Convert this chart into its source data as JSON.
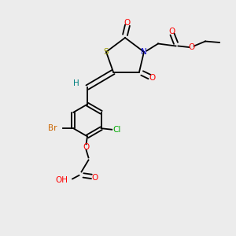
{
  "bg_color": "#ececec",
  "bond_color": "#000000",
  "atom_colors": {
    "S": "#999900",
    "N": "#0000cc",
    "O": "#ff0000",
    "Br": "#cc6600",
    "Cl": "#00aa00",
    "H": "#008080",
    "C": "#000000"
  },
  "font_size": 7.5,
  "lw": 1.3
}
